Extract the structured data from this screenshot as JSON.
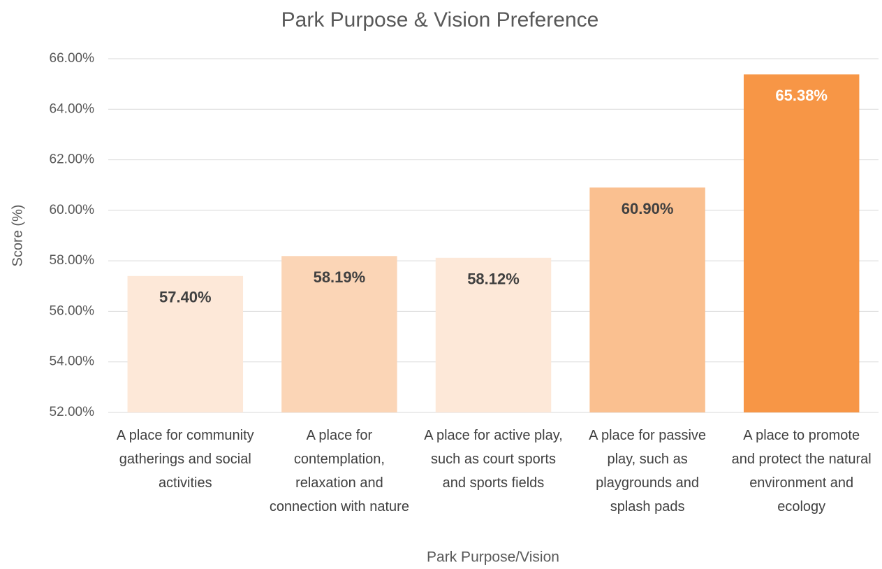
{
  "chart_data": {
    "type": "bar",
    "title": "Park Purpose & Vision Preference",
    "x_label": "Park Purpose/Vision",
    "y_label": "Score (%)",
    "categories": [
      "A place for community gatherings and social activities",
      "A place for contemplation, relaxation and connection with nature",
      "A place for active play, such as court sports and sports fields",
      "A place for passive play, such as playgrounds and splash pads",
      "A place to promote and protect the natural environment and ecology"
    ],
    "values": [
      57.4,
      58.19,
      58.12,
      60.9,
      65.38
    ],
    "value_labels": [
      "57.40%",
      "58.19%",
      "58.12%",
      "60.90%",
      "65.38%"
    ],
    "colors": [
      "#fde8d8",
      "#fbd5b6",
      "#fde8d8",
      "#fac090",
      "#f79646"
    ],
    "value_label_colors": [
      "#404040",
      "#404040",
      "#404040",
      "#404040",
      "#ffffff"
    ],
    "ylim": [
      52,
      66
    ],
    "yticks": [
      {
        "value": 52,
        "label": "52.00%"
      },
      {
        "value": 54,
        "label": "54.00%"
      },
      {
        "value": 56,
        "label": "56.00%"
      },
      {
        "value": 58,
        "label": "58.00%"
      },
      {
        "value": 60,
        "label": "60.00%"
      },
      {
        "value": 62,
        "label": "62.00%"
      },
      {
        "value": 64,
        "label": "64.00%"
      },
      {
        "value": 66,
        "label": "66.00%"
      }
    ],
    "grid": true
  }
}
